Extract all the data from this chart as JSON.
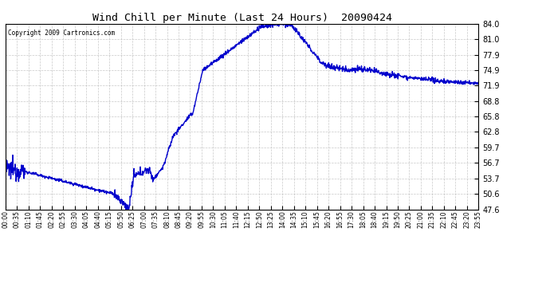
{
  "title": "Wind Chill per Minute (Last 24 Hours)  20090424",
  "copyright_text": "Copyright 2009 Cartronics.com",
  "line_color": "#0000cc",
  "background_color": "#ffffff",
  "plot_bg_color": "#ffffff",
  "grid_color": "#bbbbbb",
  "yticks": [
    47.6,
    50.6,
    53.7,
    56.7,
    59.7,
    62.8,
    65.8,
    68.8,
    71.9,
    74.9,
    77.9,
    81.0,
    84.0
  ],
  "ymin": 47.6,
  "ymax": 84.0,
  "xtick_labels": [
    "00:00",
    "00:35",
    "01:10",
    "01:45",
    "02:20",
    "02:55",
    "03:30",
    "04:05",
    "04:40",
    "05:15",
    "05:50",
    "06:25",
    "07:00",
    "07:35",
    "08:10",
    "08:45",
    "09:20",
    "09:55",
    "10:30",
    "11:05",
    "11:40",
    "12:15",
    "12:50",
    "13:25",
    "14:00",
    "14:35",
    "15:10",
    "15:45",
    "16:20",
    "16:55",
    "17:30",
    "18:05",
    "18:40",
    "19:15",
    "19:50",
    "20:25",
    "21:00",
    "21:35",
    "22:10",
    "22:45",
    "23:20",
    "23:55"
  ],
  "line_width": 1.0,
  "keypoints_x": [
    0,
    60,
    330,
    375,
    390,
    435,
    450,
    480,
    510,
    555,
    570,
    600,
    780,
    840,
    870,
    960,
    990,
    1050,
    1080,
    1140,
    1200,
    1260,
    1320,
    1439
  ],
  "keypoints_y": [
    55.5,
    55.0,
    50.6,
    47.6,
    54.0,
    55.5,
    53.5,
    56.0,
    62.0,
    65.5,
    66.5,
    74.9,
    83.5,
    84.0,
    83.8,
    76.5,
    75.5,
    75.0,
    75.2,
    74.5,
    73.8,
    73.2,
    72.8,
    72.3
  ]
}
